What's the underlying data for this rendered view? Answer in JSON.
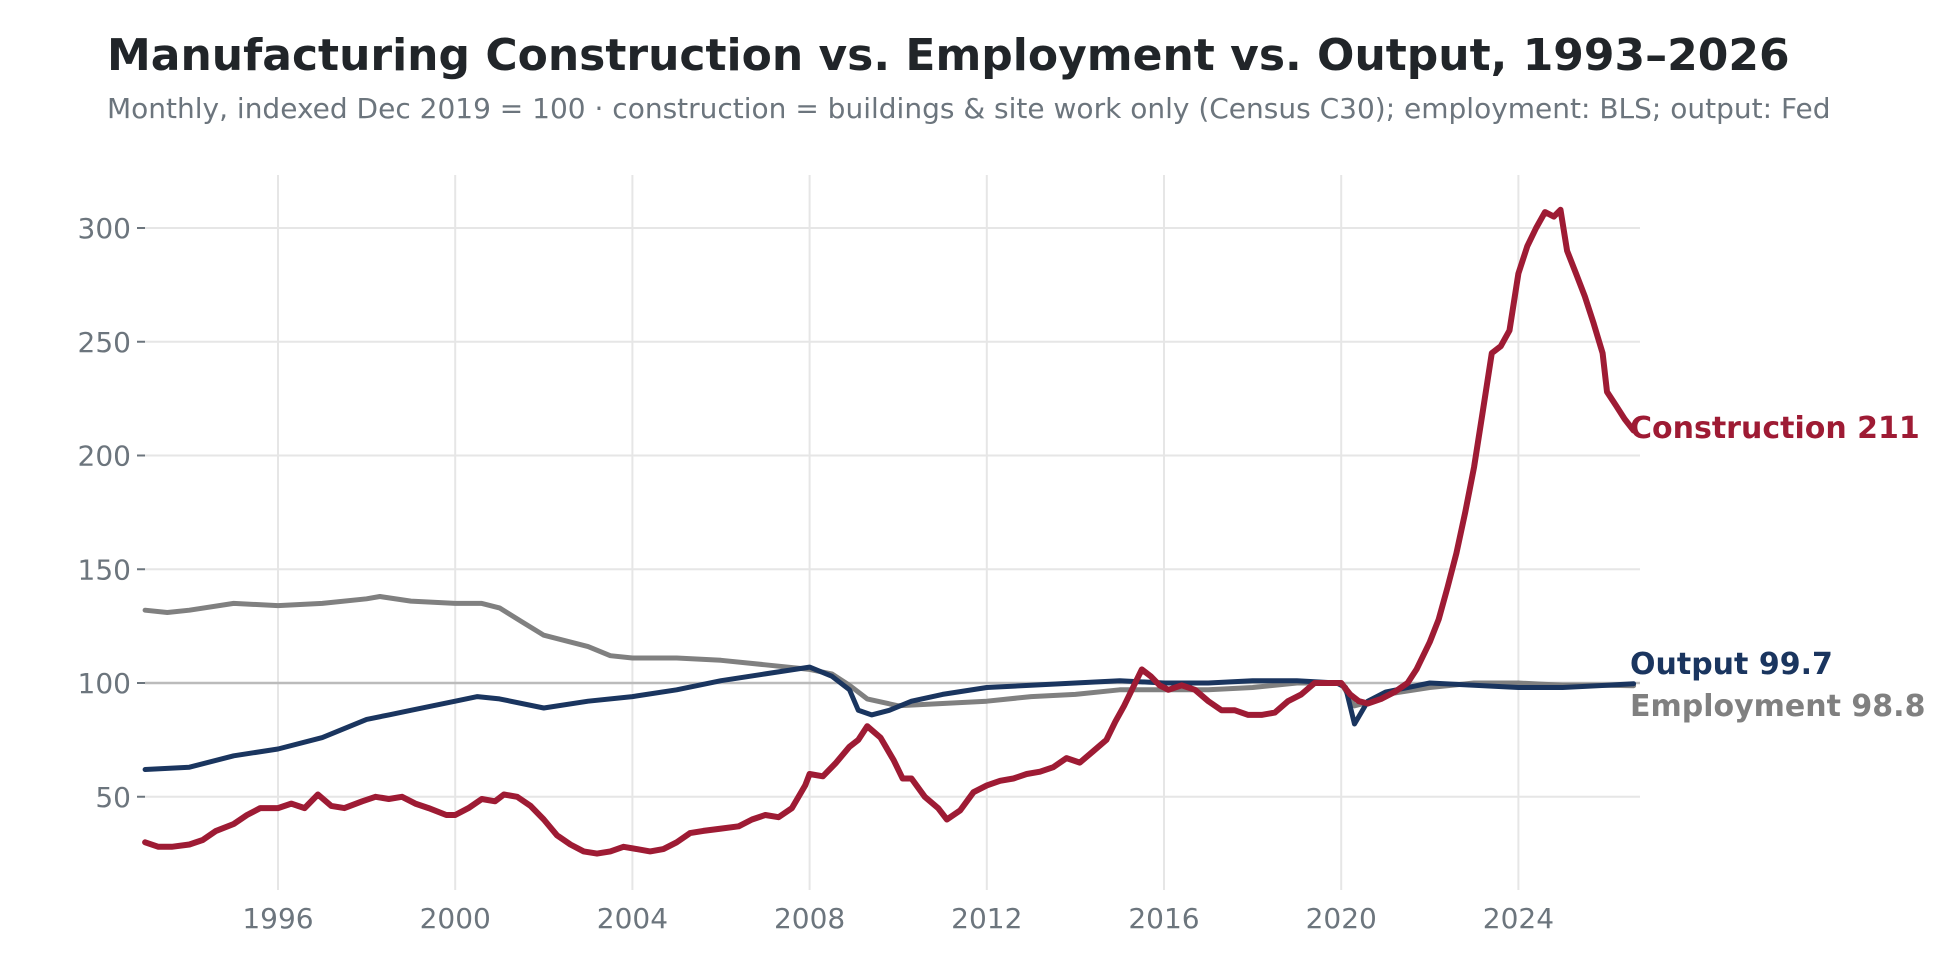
{
  "title": "Manufacturing Construction vs. Employment vs. Output, 1993–2026",
  "subtitle": "Monthly, indexed Dec 2019 = 100 · construction = buildings & site work only (Census C30); employment: BLS; output: Fed",
  "colors": {
    "construction": "#9e1b34",
    "output": "#1a355f",
    "employment": "#808080",
    "grid": "#e6e6e6",
    "reference": "#bbbbbb",
    "tick": "#6c757d"
  },
  "chart_data": {
    "type": "line",
    "title": "Manufacturing Construction vs. Employment vs. Output, 1993–2026",
    "xlim": [
      1993.0,
      2026.9
    ],
    "ylim": [
      10,
      325
    ],
    "x_ticks": [
      1996,
      2000,
      2004,
      2008,
      2012,
      2016,
      2020,
      2024
    ],
    "y_ticks": [
      50,
      100,
      150,
      200,
      250,
      300
    ],
    "reference_line": 100,
    "grid": true,
    "series": [
      {
        "name": "Construction",
        "end_label": "Construction 211",
        "color_key": "construction",
        "points": [
          [
            1993.0,
            30
          ],
          [
            1993.3,
            28
          ],
          [
            1993.6,
            28
          ],
          [
            1994.0,
            29
          ],
          [
            1994.3,
            31
          ],
          [
            1994.6,
            35
          ],
          [
            1995.0,
            38
          ],
          [
            1995.3,
            42
          ],
          [
            1995.6,
            45
          ],
          [
            1996.0,
            45
          ],
          [
            1996.3,
            47
          ],
          [
            1996.6,
            45
          ],
          [
            1996.9,
            51
          ],
          [
            1997.2,
            46
          ],
          [
            1997.5,
            45
          ],
          [
            1997.9,
            48
          ],
          [
            1998.2,
            50
          ],
          [
            1998.5,
            49
          ],
          [
            1998.8,
            50
          ],
          [
            1999.1,
            47
          ],
          [
            1999.4,
            45
          ],
          [
            1999.8,
            42
          ],
          [
            2000.0,
            42
          ],
          [
            2000.3,
            45
          ],
          [
            2000.6,
            49
          ],
          [
            2000.9,
            48
          ],
          [
            2001.1,
            51
          ],
          [
            2001.4,
            50
          ],
          [
            2001.7,
            46
          ],
          [
            2002.0,
            40
          ],
          [
            2002.3,
            33
          ],
          [
            2002.6,
            29
          ],
          [
            2002.9,
            26
          ],
          [
            2003.2,
            25
          ],
          [
            2003.5,
            26
          ],
          [
            2003.8,
            28
          ],
          [
            2004.1,
            27
          ],
          [
            2004.4,
            26
          ],
          [
            2004.7,
            27
          ],
          [
            2005.0,
            30
          ],
          [
            2005.3,
            34
          ],
          [
            2005.6,
            35
          ],
          [
            2006.0,
            36
          ],
          [
            2006.4,
            37
          ],
          [
            2006.7,
            40
          ],
          [
            2007.0,
            42
          ],
          [
            2007.3,
            41
          ],
          [
            2007.6,
            45
          ],
          [
            2007.9,
            55
          ],
          [
            2008.0,
            60
          ],
          [
            2008.3,
            59
          ],
          [
            2008.6,
            65
          ],
          [
            2008.9,
            72
          ],
          [
            2009.1,
            75
          ],
          [
            2009.3,
            81
          ],
          [
            2009.6,
            76
          ],
          [
            2009.9,
            66
          ],
          [
            2010.1,
            58
          ],
          [
            2010.3,
            58
          ],
          [
            2010.6,
            50
          ],
          [
            2010.9,
            45
          ],
          [
            2011.1,
            40
          ],
          [
            2011.4,
            44
          ],
          [
            2011.7,
            52
          ],
          [
            2012.0,
            55
          ],
          [
            2012.3,
            57
          ],
          [
            2012.6,
            58
          ],
          [
            2012.9,
            60
          ],
          [
            2013.2,
            61
          ],
          [
            2013.5,
            63
          ],
          [
            2013.8,
            67
          ],
          [
            2014.1,
            65
          ],
          [
            2014.4,
            70
          ],
          [
            2014.7,
            75
          ],
          [
            2014.9,
            83
          ],
          [
            2015.1,
            90
          ],
          [
            2015.3,
            98
          ],
          [
            2015.5,
            106
          ],
          [
            2015.7,
            103
          ],
          [
            2015.9,
            99
          ],
          [
            2016.1,
            97
          ],
          [
            2016.4,
            99
          ],
          [
            2016.7,
            97
          ],
          [
            2017.0,
            92
          ],
          [
            2017.3,
            88
          ],
          [
            2017.6,
            88
          ],
          [
            2017.9,
            86
          ],
          [
            2018.2,
            86
          ],
          [
            2018.5,
            87
          ],
          [
            2018.8,
            92
          ],
          [
            2019.1,
            95
          ],
          [
            2019.4,
            100
          ],
          [
            2019.7,
            100
          ],
          [
            2020.0,
            100
          ],
          [
            2020.2,
            95
          ],
          [
            2020.4,
            92
          ],
          [
            2020.6,
            91
          ],
          [
            2020.9,
            93
          ],
          [
            2021.2,
            96
          ],
          [
            2021.5,
            100
          ],
          [
            2021.7,
            106
          ],
          [
            2022.0,
            118
          ],
          [
            2022.2,
            128
          ],
          [
            2022.4,
            142
          ],
          [
            2022.6,
            157
          ],
          [
            2022.8,
            175
          ],
          [
            2023.0,
            195
          ],
          [
            2023.2,
            220
          ],
          [
            2023.4,
            245
          ],
          [
            2023.6,
            248
          ],
          [
            2023.8,
            255
          ],
          [
            2024.0,
            280
          ],
          [
            2024.2,
            292
          ],
          [
            2024.4,
            300
          ],
          [
            2024.6,
            307
          ],
          [
            2024.8,
            305
          ],
          [
            2024.95,
            308
          ],
          [
            2025.1,
            290
          ],
          [
            2025.3,
            280
          ],
          [
            2025.5,
            270
          ],
          [
            2025.7,
            258
          ],
          [
            2025.9,
            245
          ],
          [
            2026.0,
            228
          ],
          [
            2026.2,
            222
          ],
          [
            2026.4,
            216
          ],
          [
            2026.6,
            211
          ]
        ]
      },
      {
        "name": "Output",
        "end_label": "Output 99.7",
        "color_key": "output",
        "points": [
          [
            1993.0,
            62
          ],
          [
            1994.0,
            63
          ],
          [
            1995.0,
            68
          ],
          [
            1996.0,
            71
          ],
          [
            1997.0,
            76
          ],
          [
            1998.0,
            84
          ],
          [
            1998.5,
            86
          ],
          [
            1999.0,
            88
          ],
          [
            2000.0,
            92
          ],
          [
            2000.5,
            94
          ],
          [
            2001.0,
            93
          ],
          [
            2002.0,
            89
          ],
          [
            2003.0,
            92
          ],
          [
            2004.0,
            94
          ],
          [
            2005.0,
            97
          ],
          [
            2006.0,
            101
          ],
          [
            2007.0,
            104
          ],
          [
            2008.0,
            107
          ],
          [
            2008.5,
            103
          ],
          [
            2008.9,
            97
          ],
          [
            2009.1,
            88
          ],
          [
            2009.4,
            86
          ],
          [
            2009.8,
            88
          ],
          [
            2010.3,
            92
          ],
          [
            2011.0,
            95
          ],
          [
            2012.0,
            98
          ],
          [
            2013.0,
            99
          ],
          [
            2014.0,
            100
          ],
          [
            2015.0,
            101
          ],
          [
            2016.0,
            100
          ],
          [
            2017.0,
            100
          ],
          [
            2018.0,
            101
          ],
          [
            2019.0,
            101
          ],
          [
            2019.9,
            100
          ],
          [
            2020.1,
            98
          ],
          [
            2020.3,
            82
          ],
          [
            2020.6,
            92
          ],
          [
            2021.0,
            96
          ],
          [
            2022.0,
            100
          ],
          [
            2023.0,
            99
          ],
          [
            2024.0,
            98
          ],
          [
            2025.0,
            98
          ],
          [
            2026.0,
            99
          ],
          [
            2026.6,
            99.7
          ]
        ]
      },
      {
        "name": "Employment",
        "end_label": "Employment 98.8",
        "color_key": "employment",
        "points": [
          [
            1993.0,
            132
          ],
          [
            1993.5,
            131
          ],
          [
            1994.0,
            132
          ],
          [
            1995.0,
            135
          ],
          [
            1996.0,
            134
          ],
          [
            1997.0,
            135
          ],
          [
            1998.0,
            137
          ],
          [
            1998.3,
            138
          ],
          [
            1999.0,
            136
          ],
          [
            2000.0,
            135
          ],
          [
            2000.6,
            135
          ],
          [
            2001.0,
            133
          ],
          [
            2001.5,
            127
          ],
          [
            2002.0,
            121
          ],
          [
            2003.0,
            116
          ],
          [
            2003.5,
            112
          ],
          [
            2004.0,
            111
          ],
          [
            2005.0,
            111
          ],
          [
            2006.0,
            110
          ],
          [
            2007.0,
            108
          ],
          [
            2008.0,
            106
          ],
          [
            2008.5,
            104
          ],
          [
            2008.9,
            99
          ],
          [
            2009.3,
            93
          ],
          [
            2010.0,
            90
          ],
          [
            2011.0,
            91
          ],
          [
            2012.0,
            92
          ],
          [
            2013.0,
            94
          ],
          [
            2014.0,
            95
          ],
          [
            2015.0,
            97
          ],
          [
            2016.0,
            97
          ],
          [
            2017.0,
            97
          ],
          [
            2018.0,
            98
          ],
          [
            2019.0,
            100
          ],
          [
            2020.0,
            100
          ],
          [
            2020.3,
            90
          ],
          [
            2020.7,
            92
          ],
          [
            2021.0,
            95
          ],
          [
            2022.0,
            98
          ],
          [
            2023.0,
            100
          ],
          [
            2024.0,
            100
          ],
          [
            2025.0,
            99
          ],
          [
            2026.0,
            99
          ],
          [
            2026.6,
            98.8
          ]
        ]
      }
    ]
  }
}
